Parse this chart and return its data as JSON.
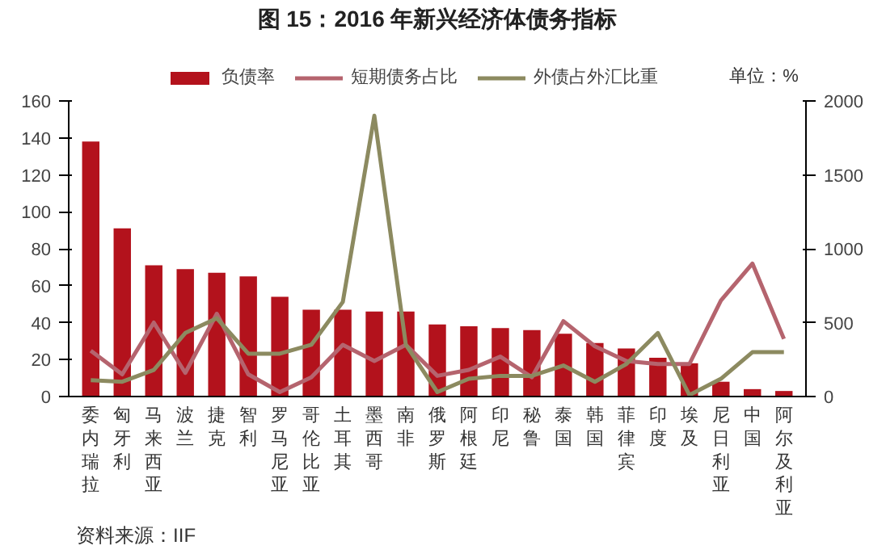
{
  "chart_data": {
    "type": "bar",
    "title": "图 15：2016 年新兴经济体债务指标",
    "categories": [
      "委内瑞拉",
      "匈牙利",
      "马来西亚",
      "波兰",
      "捷克",
      "智利",
      "罗马尼亚",
      "哥伦比亚",
      "土耳其",
      "墨西哥",
      "南非",
      "俄罗斯",
      "阿根廷",
      "印尼",
      "秘鲁",
      "泰国",
      "韩国",
      "菲律宾",
      "印度",
      "埃及",
      "尼日利亚",
      "中国",
      "阿尔及利亚"
    ],
    "series": [
      {
        "name": "负债率",
        "color": "#b3121c",
        "values": [
          138,
          91,
          71,
          69,
          67,
          65,
          54,
          47,
          47,
          46,
          46,
          39,
          38,
          37,
          36,
          34,
          29,
          26,
          21,
          18,
          8,
          4,
          3
        ]
      },
      {
        "name": "短期债务占比",
        "type": "line",
        "axis": "y2",
        "color": "#b5646e",
        "values": [
          310,
          150,
          500,
          160,
          560,
          150,
          30,
          130,
          350,
          240,
          350,
          140,
          180,
          270,
          130,
          510,
          340,
          240,
          220,
          220,
          650,
          900,
          390
        ]
      },
      {
        "name": "外债占外汇比重",
        "type": "line",
        "axis": "y2",
        "color": "#8c8a60",
        "values": [
          110,
          100,
          180,
          430,
          530,
          290,
          290,
          350,
          640,
          1900,
          350,
          30,
          120,
          140,
          140,
          210,
          100,
          220,
          430,
          10,
          120,
          300,
          300
        ]
      }
    ],
    "ylim": [
      0,
      160
    ],
    "yticks": [
      0,
      20,
      40,
      60,
      80,
      100,
      120,
      140,
      160
    ],
    "y2lim": [
      0,
      2000
    ],
    "y2ticks": [
      0,
      500,
      1000,
      1500,
      2000
    ],
    "legend": "top",
    "grid": false,
    "annotations": [
      "单位：%",
      "资料来源：IIF"
    ]
  }
}
